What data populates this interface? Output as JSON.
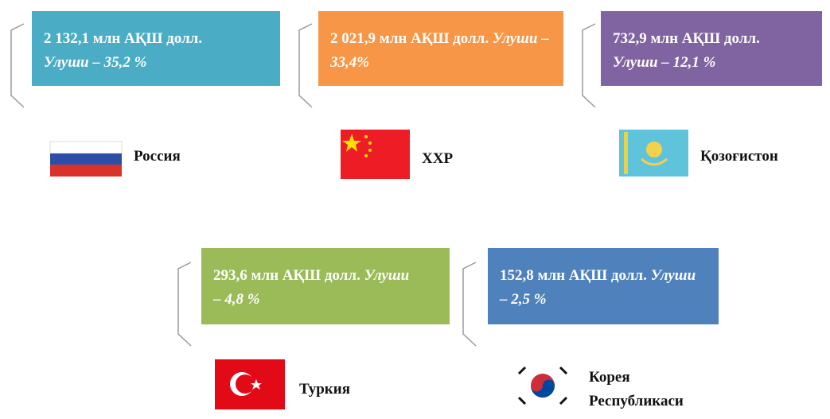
{
  "items": [
    {
      "amount": "2 132,1 млн АҚШ долл.",
      "share": "Улуши – 35,2 %",
      "name": "Россия",
      "color": "#4bacc6"
    },
    {
      "amount": "2 021,9 млн АҚШ долл.",
      "share": "Улуши – 33,4%",
      "name": "ХХР",
      "color": "#f79646"
    },
    {
      "amount": "732,9 млн АҚШ долл.",
      "share": "Улуши – 12,1 %",
      "name": "Қозоғистон",
      "color": "#8064a2"
    },
    {
      "amount": "293,6 млн АҚШ долл.",
      "share": "Улуши – 4,8 %",
      "name": "Туркия",
      "color": "#9bbb59"
    },
    {
      "amount": "152,8 млн АҚШ долл.",
      "share": "Улуши – 2,5 %",
      "name": "Корея Республикаси",
      "color": "#4f81bd"
    }
  ]
}
